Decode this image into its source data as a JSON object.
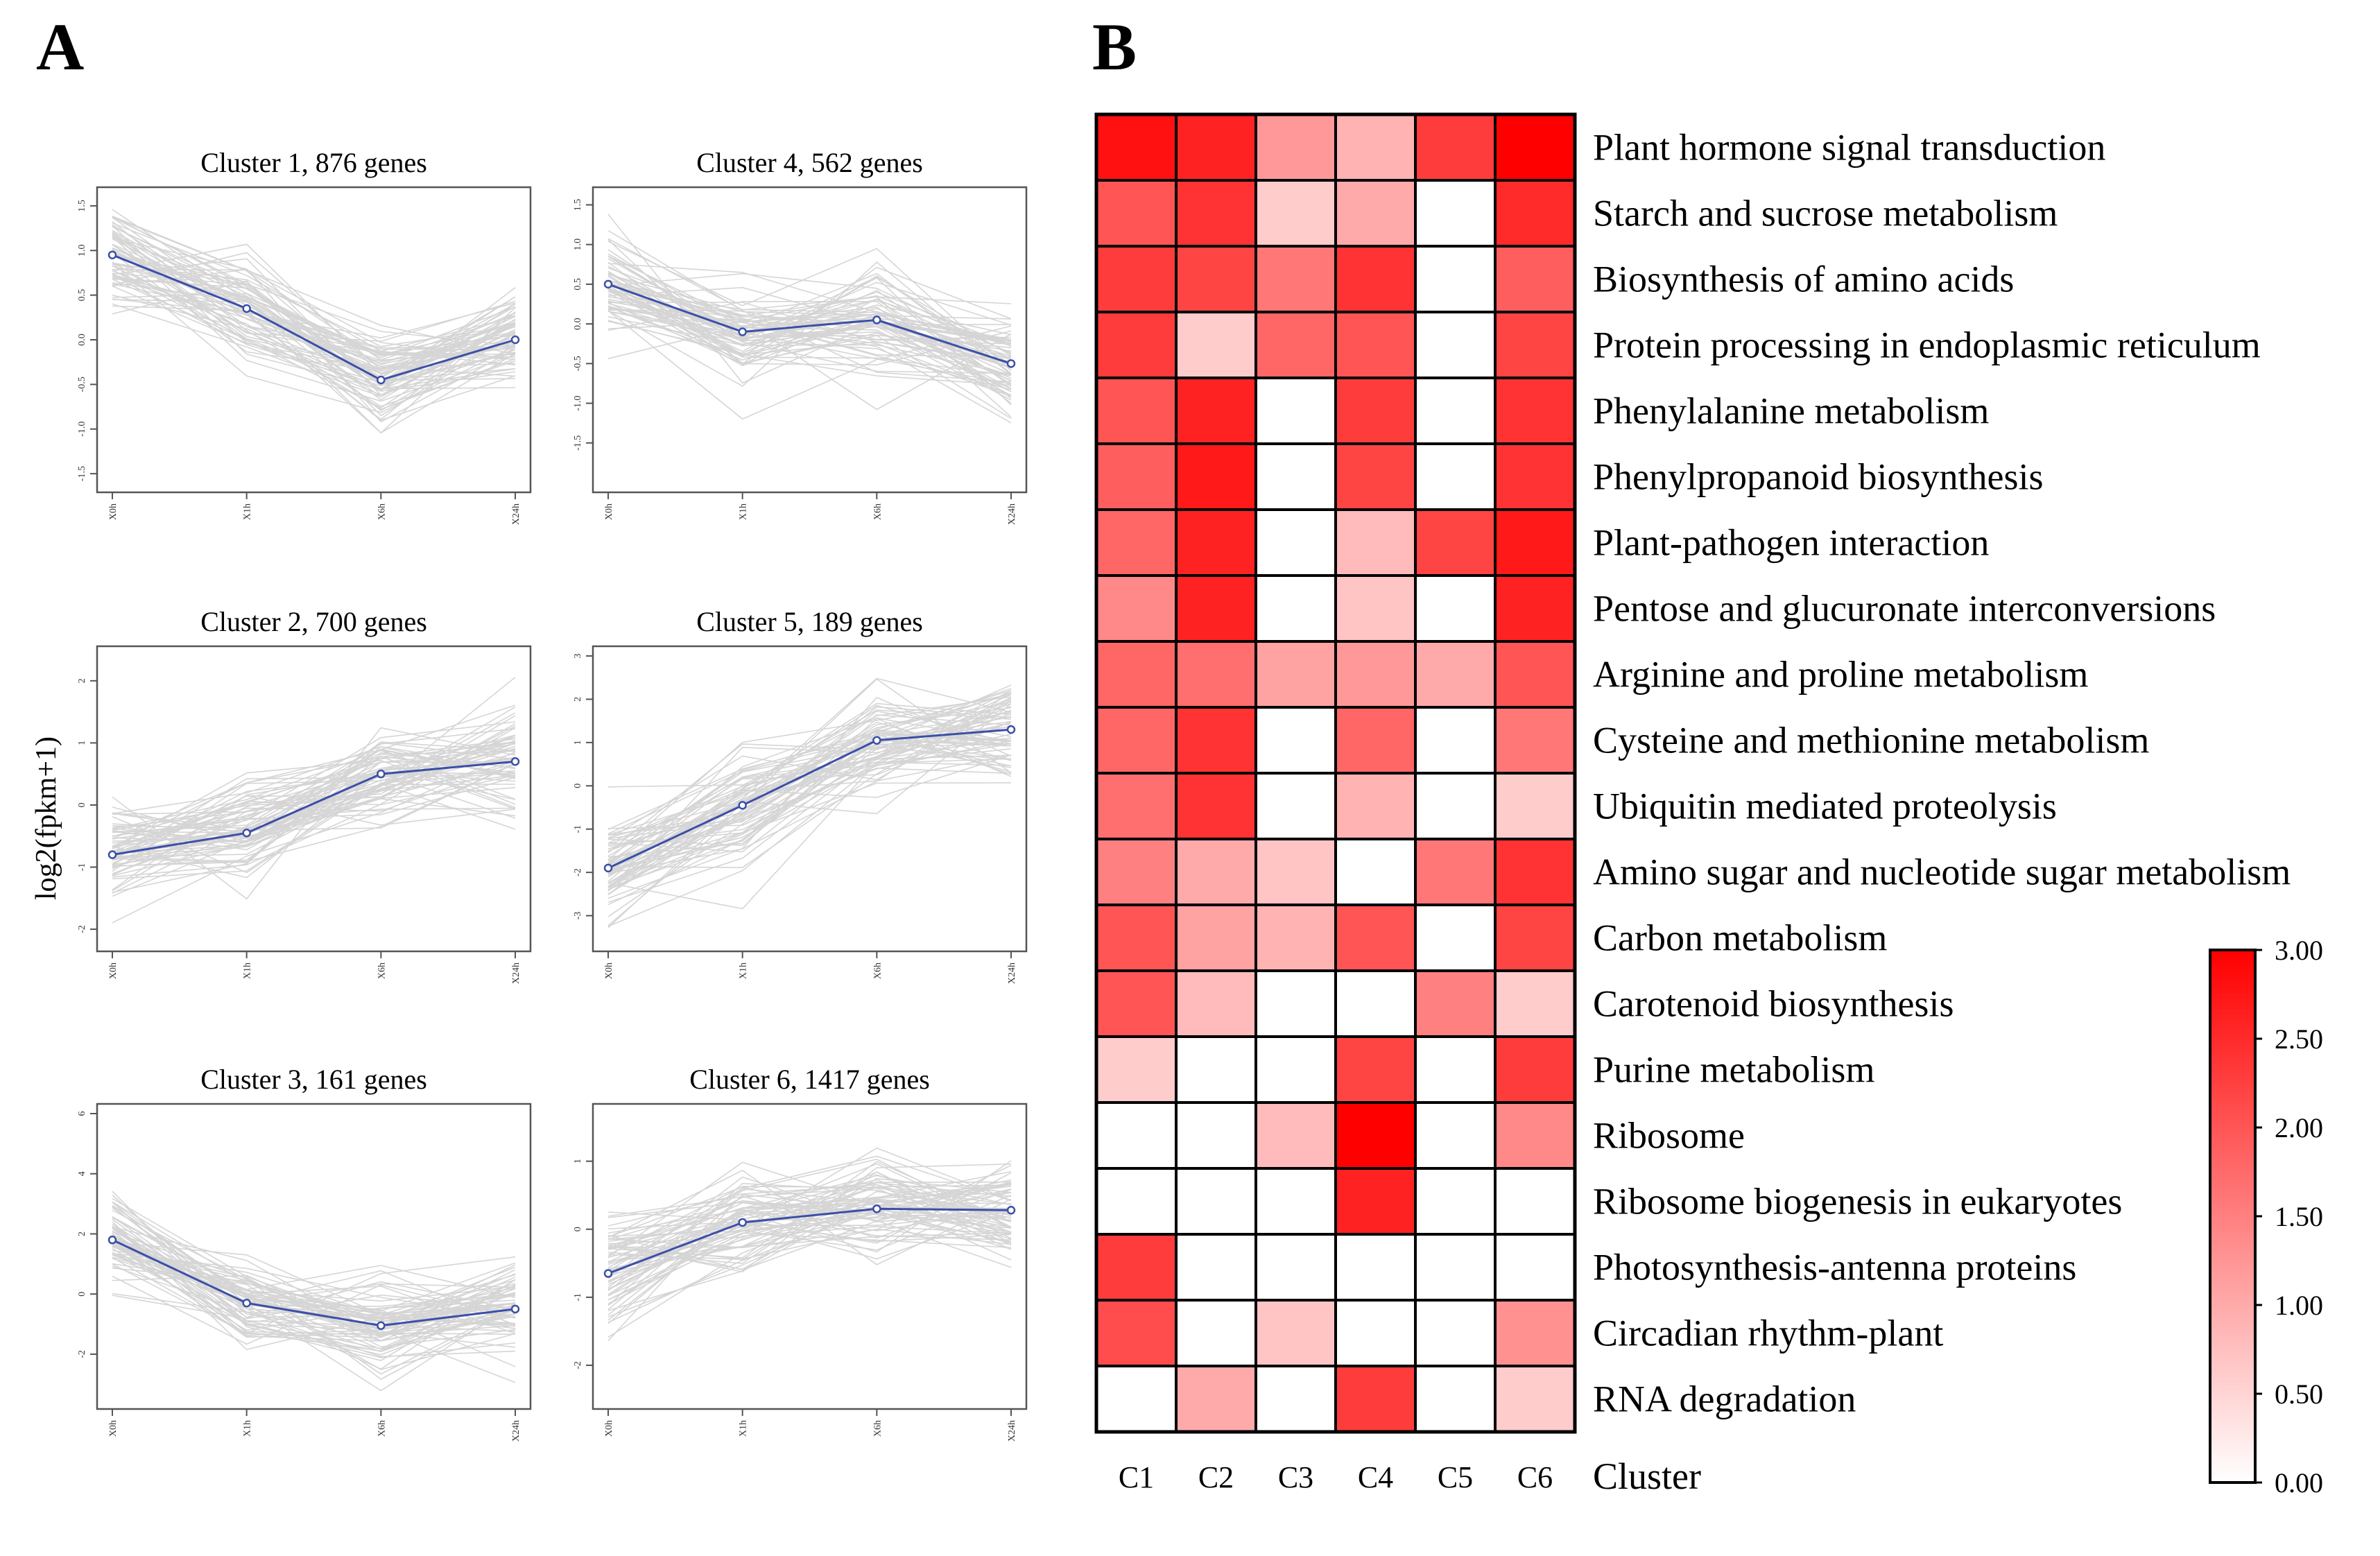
{
  "figure": {
    "panel_a_label": "A",
    "panel_b_label": "B",
    "y_axis_label": "log2(fpkm+1)"
  },
  "chart_data": [
    {
      "type": "line",
      "title": "Cluster 1, 876 genes",
      "x": [
        "X0h",
        "X1h",
        "X6h",
        "X24h"
      ],
      "series": [
        {
          "name": "mean",
          "values": [
            0.95,
            0.35,
            -0.45,
            0.0
          ]
        }
      ],
      "ylim": [
        -1.6,
        1.6
      ],
      "yticks": [
        "-1.5",
        "-1.0",
        "-0.5",
        "0.0",
        "0.5",
        "1.0",
        "1.5"
      ],
      "ytick_values": [
        -1.5,
        -1.0,
        -0.5,
        0.0,
        0.5,
        1.0,
        1.5
      ],
      "background_lines_color": "#c8c8c8",
      "mean_line_color": "#3b4fa8"
    },
    {
      "type": "line",
      "title": "Cluster 4, 562 genes",
      "x": [
        "X0h",
        "X1h",
        "X6h",
        "X24h"
      ],
      "series": [
        {
          "name": "mean",
          "values": [
            0.5,
            -0.1,
            0.05,
            -0.5
          ]
        }
      ],
      "ylim": [
        -2.0,
        1.6
      ],
      "yticks": [
        "-1.5",
        "-1.0",
        "-0.5",
        "0.0",
        "0.5",
        "1.0",
        "1.5"
      ],
      "ytick_values": [
        -1.5,
        -1.0,
        -0.5,
        0.0,
        0.5,
        1.0,
        1.5
      ],
      "background_lines_color": "#c8c8c8",
      "mean_line_color": "#3b4fa8"
    },
    {
      "type": "line",
      "title": "Cluster 2, 700 genes",
      "x": [
        "X0h",
        "X1h",
        "X6h",
        "X24h"
      ],
      "series": [
        {
          "name": "mean",
          "values": [
            -0.8,
            -0.45,
            0.5,
            0.7
          ]
        }
      ],
      "ylim": [
        -2.2,
        2.4
      ],
      "yticks": [
        "-2",
        "-1",
        "0",
        "1",
        "2"
      ],
      "ytick_values": [
        -2,
        -1,
        0,
        1,
        2
      ],
      "background_lines_color": "#c8c8c8",
      "mean_line_color": "#3b4fa8"
    },
    {
      "type": "line",
      "title": "Cluster 5, 189 genes",
      "x": [
        "X0h",
        "X1h",
        "X6h",
        "X24h"
      ],
      "series": [
        {
          "name": "mean",
          "values": [
            -1.9,
            -0.45,
            1.05,
            1.3
          ]
        }
      ],
      "ylim": [
        -3.6,
        3.0
      ],
      "yticks": [
        "-3",
        "-2",
        "-1",
        "0",
        "1",
        "2",
        "3"
      ],
      "ytick_values": [
        -3,
        -2,
        -1,
        0,
        1,
        2,
        3
      ],
      "background_lines_color": "#c8c8c8",
      "mean_line_color": "#3b4fa8"
    },
    {
      "type": "line",
      "title": "Cluster 3, 161 genes",
      "x": [
        "X0h",
        "X1h",
        "X6h",
        "X24h"
      ],
      "series": [
        {
          "name": "mean",
          "values": [
            1.8,
            -0.3,
            -1.05,
            -0.5
          ]
        }
      ],
      "ylim": [
        -3.5,
        6.0
      ],
      "yticks": [
        "-2",
        "0",
        "2",
        "4",
        "6"
      ],
      "ytick_values": [
        -2,
        0,
        2,
        4,
        6
      ],
      "background_lines_color": "#c8c8c8",
      "mean_line_color": "#3b4fa8"
    },
    {
      "type": "line",
      "title": "Cluster 6, 1417 genes",
      "x": [
        "X0h",
        "X1h",
        "X6h",
        "X24h"
      ],
      "series": [
        {
          "name": "mean",
          "values": [
            -0.65,
            0.1,
            0.3,
            0.28
          ]
        }
      ],
      "ylim": [
        -2.5,
        1.7
      ],
      "yticks": [
        "-2",
        "-1",
        "0",
        "1"
      ],
      "ytick_values": [
        -2,
        -1,
        0,
        1
      ],
      "background_lines_color": "#c8c8c8",
      "mean_line_color": "#3b4fa8"
    },
    {
      "type": "heatmap",
      "x_title": "Cluster",
      "columns": [
        "C1",
        "C2",
        "C3",
        "C4",
        "C5",
        "C6"
      ],
      "rows": [
        "Plant hormone signal transduction",
        "Starch and sucrose metabolism",
        "Biosynthesis of amino acids",
        "Protein processing in endoplasmic reticulum",
        "Phenylalanine metabolism",
        "Phenylpropanoid biosynthesis",
        "Plant-pathogen interaction",
        "Pentose and glucuronate interconversions",
        "Arginine and proline metabolism",
        "Cysteine and methionine metabolism",
        "Ubiquitin mediated proteolysis",
        "Amino sugar and nucleotide sugar metabolism",
        "Carbon metabolism",
        "Carotenoid biosynthesis",
        "Purine metabolism",
        "Ribosome",
        "Ribosome biogenesis in eukaryotes",
        "Photosynthesis-antenna proteins",
        "Circadian rhythm-plant",
        "RNA degradation"
      ],
      "values": [
        [
          2.8,
          2.6,
          1.2,
          0.9,
          2.3,
          3.0
        ],
        [
          2.0,
          2.4,
          0.6,
          1.0,
          0.0,
          2.5
        ],
        [
          2.3,
          2.2,
          1.6,
          2.4,
          0.0,
          1.9
        ],
        [
          2.3,
          0.6,
          1.8,
          2.0,
          0.0,
          2.2
        ],
        [
          2.0,
          2.6,
          0.0,
          2.3,
          0.0,
          2.4
        ],
        [
          1.9,
          2.7,
          0.0,
          2.2,
          0.0,
          2.4
        ],
        [
          1.8,
          2.6,
          0.0,
          0.8,
          2.2,
          2.7
        ],
        [
          1.4,
          2.6,
          0.0,
          0.7,
          0.0,
          2.6
        ],
        [
          1.8,
          1.7,
          1.1,
          1.2,
          1.0,
          2.0
        ],
        [
          1.8,
          2.4,
          0.0,
          1.8,
          0.0,
          1.6
        ],
        [
          1.7,
          2.4,
          0.0,
          0.9,
          0.0,
          0.6
        ],
        [
          1.5,
          1.0,
          0.7,
          0.0,
          1.6,
          2.4
        ],
        [
          2.0,
          1.1,
          0.9,
          2.0,
          0.0,
          2.2
        ],
        [
          2.0,
          0.8,
          0.0,
          0.0,
          1.5,
          0.6
        ],
        [
          0.6,
          0.0,
          0.0,
          2.2,
          0.0,
          2.3
        ],
        [
          0.0,
          0.0,
          0.8,
          3.0,
          0.0,
          1.4
        ],
        [
          0.0,
          0.0,
          0.0,
          2.6,
          0.0,
          0.0
        ],
        [
          2.3,
          0.0,
          0.0,
          0.0,
          0.0,
          0.0
        ],
        [
          2.1,
          0.0,
          0.7,
          0.0,
          0.0,
          1.3
        ],
        [
          0.0,
          1.0,
          0.0,
          2.3,
          0.0,
          0.6
        ]
      ],
      "colorbar": {
        "min": 0.0,
        "max": 3.0,
        "low_color": "#ffffff",
        "high_color": "#ff0000",
        "tick_labels": [
          "3.00",
          "2.50",
          "2.00",
          "1.50",
          "1.00",
          "0.50",
          "0.00"
        ],
        "tick_values": [
          3.0,
          2.5,
          2.0,
          1.5,
          1.0,
          0.5,
          0.0
        ]
      }
    }
  ]
}
